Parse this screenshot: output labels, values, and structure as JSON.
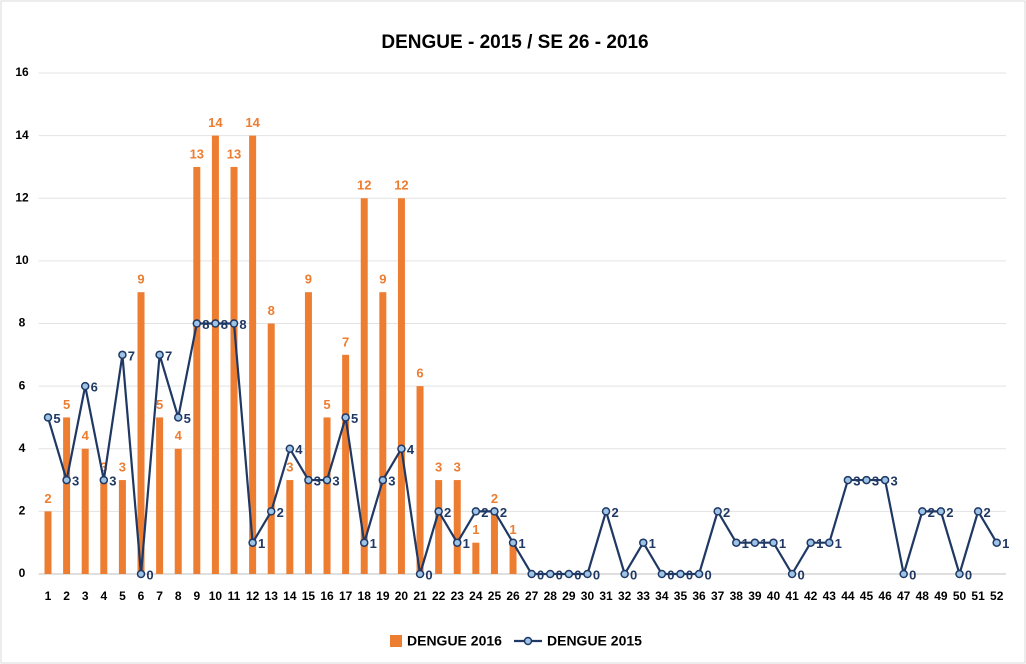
{
  "chart_data": {
    "type": "bar-line",
    "title": "DENGUE - 2015 / SE 26 - 2016",
    "categories": [
      "1",
      "2",
      "3",
      "4",
      "5",
      "6",
      "7",
      "8",
      "9",
      "10",
      "11",
      "12",
      "13",
      "14",
      "15",
      "16",
      "17",
      "18",
      "19",
      "20",
      "21",
      "22",
      "23",
      "24",
      "25",
      "26",
      "27",
      "28",
      "29",
      "30",
      "31",
      "32",
      "33",
      "34",
      "35",
      "36",
      "37",
      "38",
      "39",
      "40",
      "41",
      "42",
      "43",
      "44",
      "45",
      "46",
      "47",
      "48",
      "49",
      "50",
      "51",
      "52"
    ],
    "series": [
      {
        "name": "DENGUE 2016",
        "type": "bar",
        "color": "#ed7d31",
        "values": [
          2,
          5,
          4,
          3,
          3,
          9,
          5,
          4,
          13,
          14,
          13,
          14,
          8,
          3,
          9,
          5,
          7,
          12,
          9,
          12,
          6,
          3,
          3,
          1,
          2,
          1,
          null,
          null,
          null,
          null,
          null,
          null,
          null,
          null,
          null,
          null,
          null,
          null,
          null,
          null,
          null,
          null,
          null,
          null,
          null,
          null,
          null,
          null,
          null,
          null,
          null,
          null
        ]
      },
      {
        "name": "DENGUE 2015",
        "type": "line",
        "color": "#1f3864",
        "values": [
          5,
          3,
          6,
          3,
          7,
          0,
          7,
          5,
          8,
          8,
          8,
          1,
          2,
          4,
          3,
          3,
          5,
          1,
          3,
          4,
          0,
          2,
          1,
          2,
          2,
          1,
          0,
          0,
          0,
          0,
          2,
          0,
          1,
          0,
          0,
          0,
          2,
          1,
          1,
          1,
          0,
          1,
          1,
          3,
          3,
          3,
          0,
          2,
          2,
          0,
          2,
          1
        ]
      }
    ],
    "ylim": [
      0,
      16
    ],
    "yticks": [
      0,
      2,
      4,
      6,
      8,
      10,
      12,
      14,
      16
    ],
    "grid": true,
    "legend": "bottom"
  }
}
